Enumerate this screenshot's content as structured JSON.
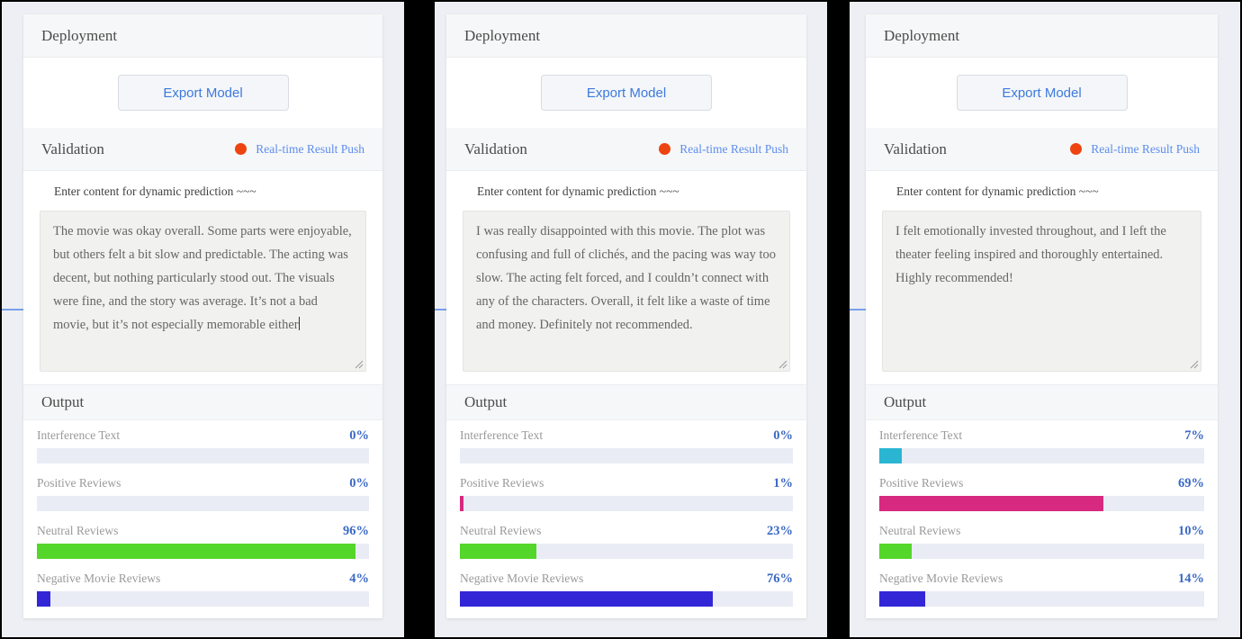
{
  "colors": {
    "interference": "#2ab6d2",
    "positive": "#d6297f",
    "neutral": "#54d62a",
    "negative": "#3226d6",
    "track": "#e9ecf5",
    "pct_blue": "#3b69c4",
    "link_blue": "#5c8dee",
    "button_blue": "#3c7add",
    "dot_orange": "#ee4411"
  },
  "panels": [
    {
      "sections": {
        "deployment": {
          "title": "Deployment",
          "export_button": "Export Model"
        },
        "validation": {
          "title": "Validation",
          "push_label": "Real-time Result Push",
          "hint": "Enter content for dynamic prediction ~~~",
          "review_text": "The movie was okay overall. Some parts were enjoyable, but others felt a bit slow and predictable. The acting was decent, but nothing particularly stood out. The visuals were fine, and the story was average. It’s not a bad movie, but it’s not especially memorable either"
        },
        "output": {
          "title": "Output",
          "rows": [
            {
              "label": "Interference Text",
              "pct": "0%",
              "value": 0,
              "color_key": "interference"
            },
            {
              "label": "Positive Reviews",
              "pct": "0%",
              "value": 0,
              "color_key": "positive"
            },
            {
              "label": "Neutral Reviews",
              "pct": "96%",
              "value": 96,
              "color_key": "neutral"
            },
            {
              "label": "Negative Movie Reviews",
              "pct": "4%",
              "value": 4,
              "color_key": "negative"
            }
          ]
        }
      }
    },
    {
      "sections": {
        "deployment": {
          "title": "Deployment",
          "export_button": "Export Model"
        },
        "validation": {
          "title": "Validation",
          "push_label": "Real-time Result Push",
          "hint": "Enter content for dynamic prediction ~~~",
          "review_text": "I was really disappointed with this movie. The plot was confusing and full of clichés, and the pacing was way too slow. The acting felt forced, and I couldn’t connect with any of the characters. Overall, it felt like a waste of time and money. Definitely not recommended."
        },
        "output": {
          "title": "Output",
          "rows": [
            {
              "label": "Interference Text",
              "pct": "0%",
              "value": 0,
              "color_key": "interference"
            },
            {
              "label": "Positive Reviews",
              "pct": "1%",
              "value": 1,
              "color_key": "positive"
            },
            {
              "label": "Neutral Reviews",
              "pct": "23%",
              "value": 23,
              "color_key": "neutral"
            },
            {
              "label": "Negative Movie Reviews",
              "pct": "76%",
              "value": 76,
              "color_key": "negative"
            }
          ]
        }
      }
    },
    {
      "sections": {
        "deployment": {
          "title": "Deployment",
          "export_button": "Export Model"
        },
        "validation": {
          "title": "Validation",
          "push_label": "Real-time Result Push",
          "hint": "Enter content for dynamic prediction ~~~",
          "review_text": "I felt emotionally invested throughout, and I left the theater feeling inspired and thoroughly entertained. Highly recommended!"
        },
        "output": {
          "title": "Output",
          "rows": [
            {
              "label": "Interference Text",
              "pct": "7%",
              "value": 7,
              "color_key": "interference"
            },
            {
              "label": "Positive Reviews",
              "pct": "69%",
              "value": 69,
              "color_key": "positive"
            },
            {
              "label": "Neutral Reviews",
              "pct": "10%",
              "value": 10,
              "color_key": "neutral"
            },
            {
              "label": "Negative Movie Reviews",
              "pct": "14%",
              "value": 14,
              "color_key": "negative"
            }
          ]
        }
      }
    }
  ]
}
